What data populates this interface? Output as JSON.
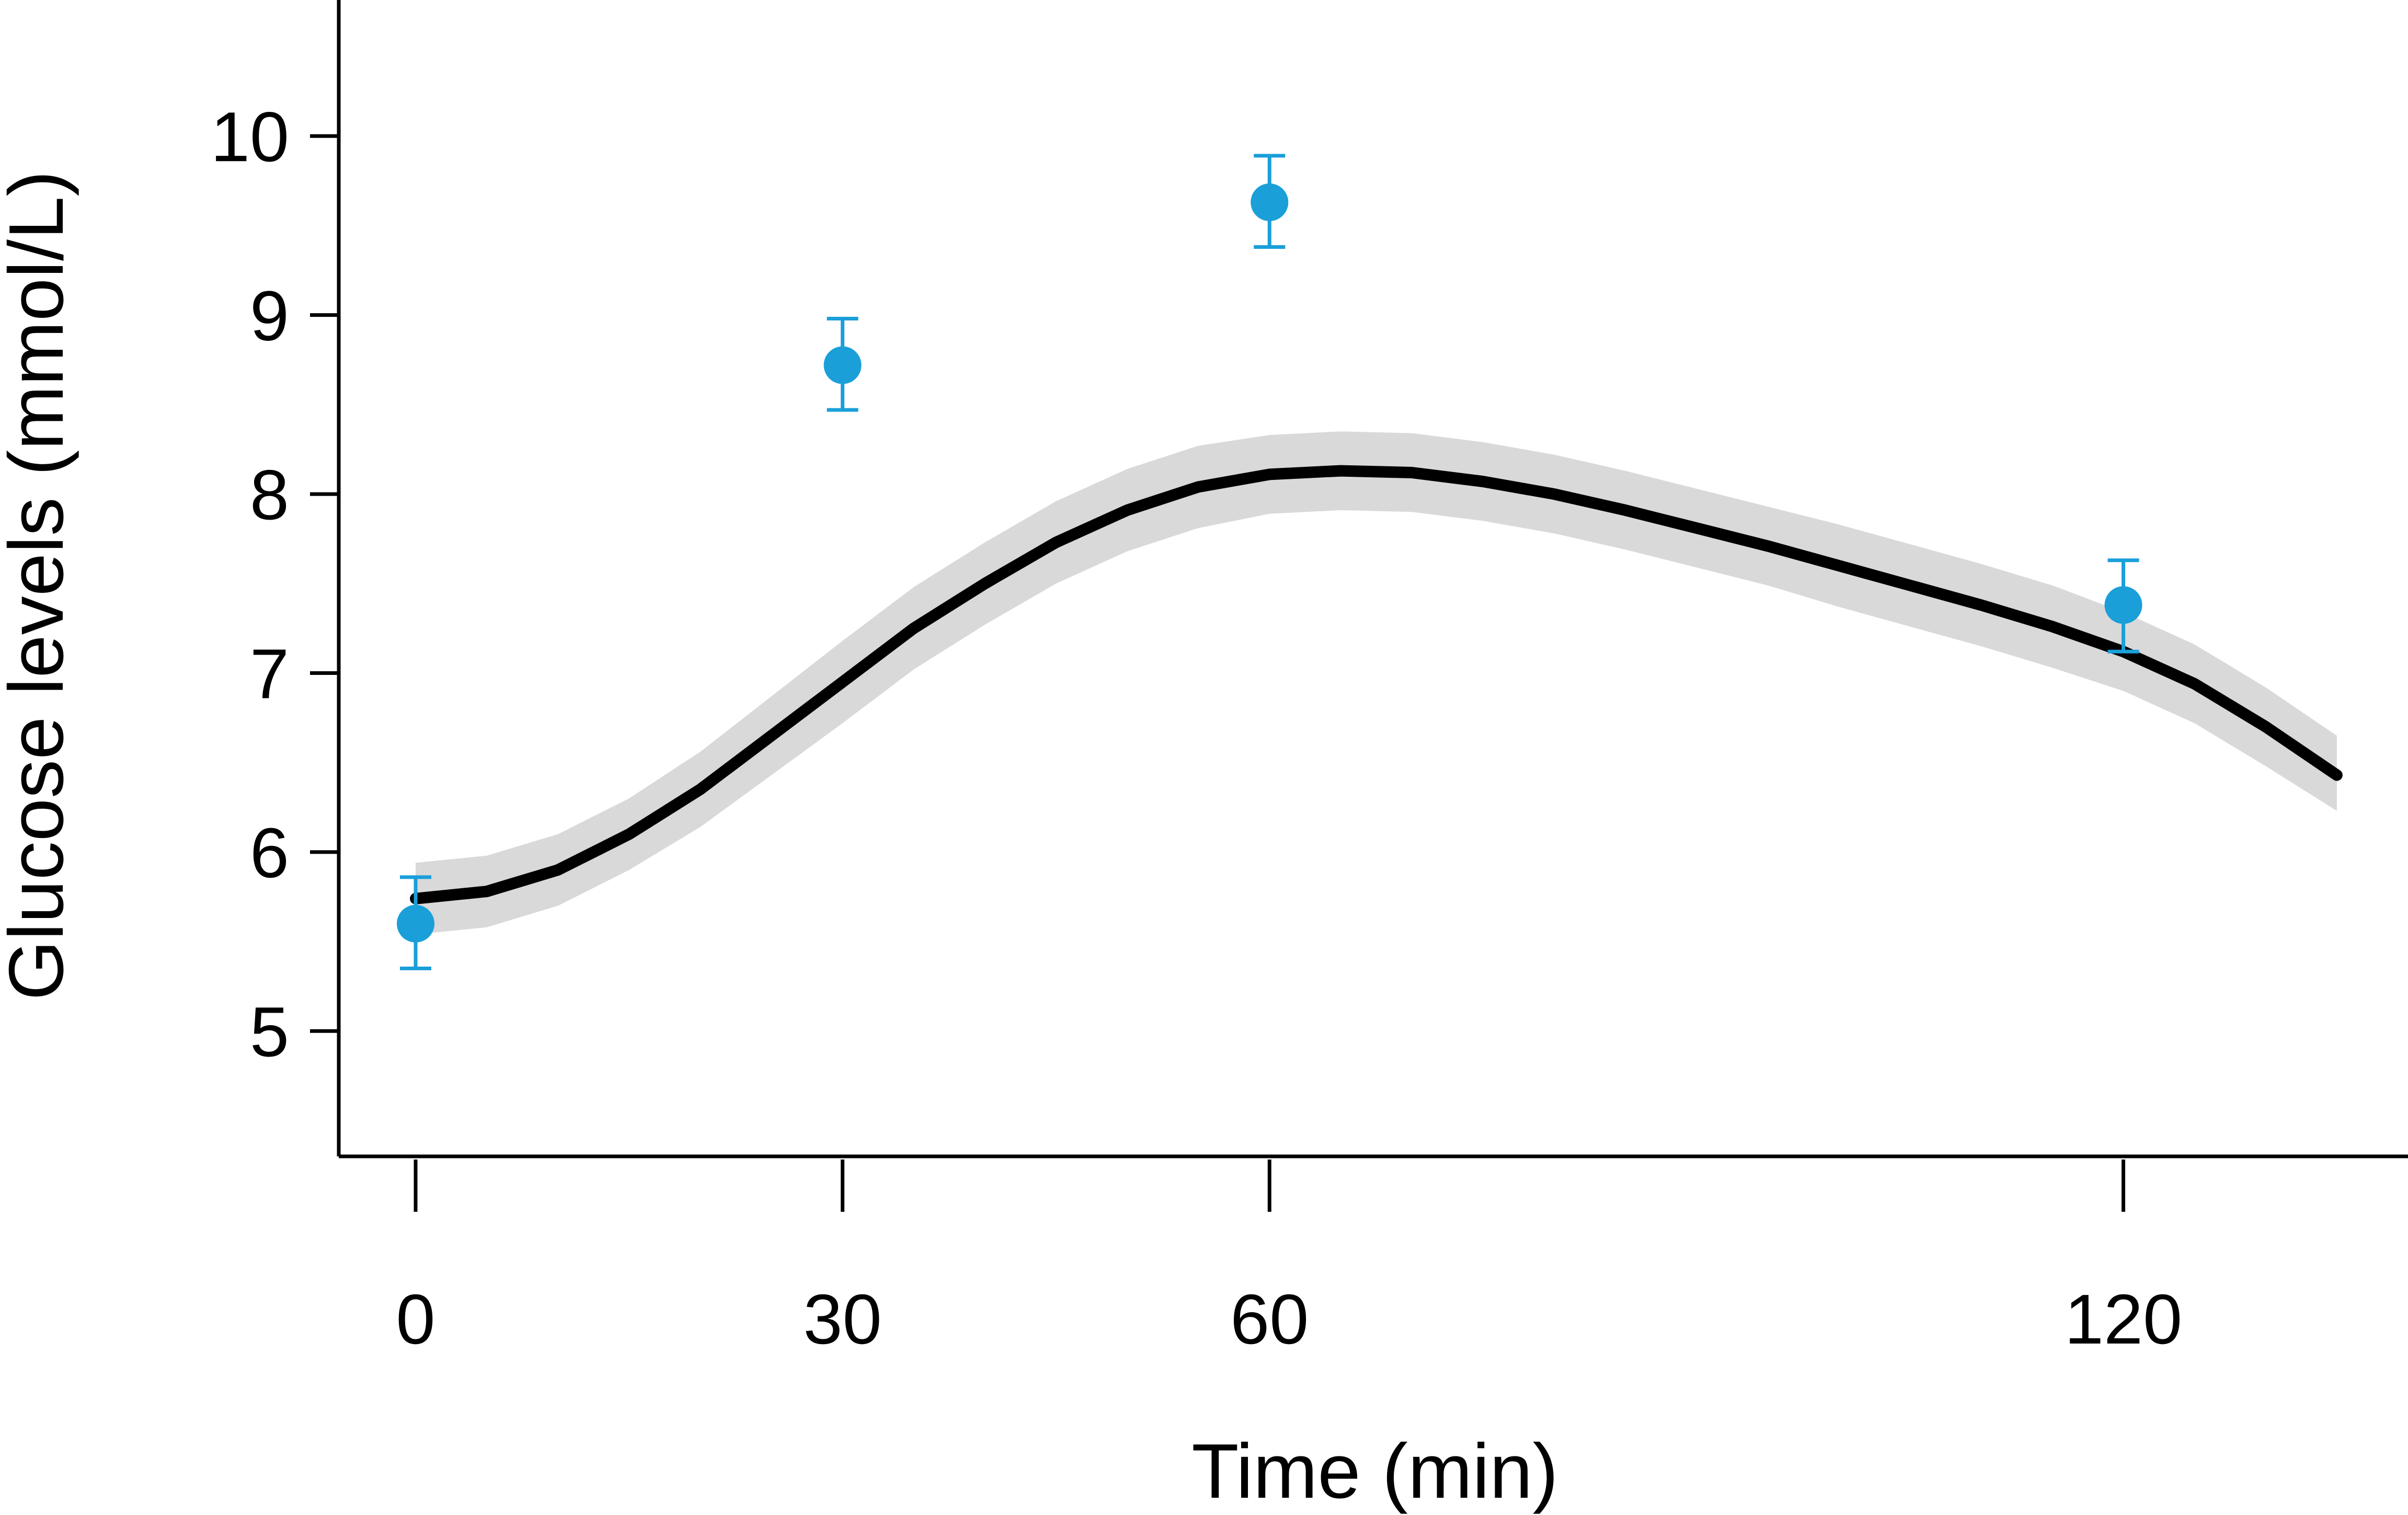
{
  "chart_data": {
    "type": "line",
    "xlabel": "Time (min)",
    "ylabel": "Glucose levels (mmol/L)",
    "x_ticks": [
      0,
      30,
      60,
      120
    ],
    "x_tick_labels": [
      "0",
      "30",
      "60",
      "120"
    ],
    "y_ticks": [
      5,
      6,
      7,
      8,
      9,
      10
    ],
    "y_tick_labels": [
      "5",
      "6",
      "7",
      "8",
      "9",
      "10"
    ],
    "xlim": [
      -5.4,
      140
    ],
    "ylim": [
      4.3,
      10.76
    ],
    "grid": false,
    "legend": "none",
    "colors": {
      "curve": "#000000",
      "band": "#d9d9d9",
      "points": "#1a9fd9"
    },
    "series": [
      {
        "type": "line",
        "x": [
          0,
          5,
          10,
          15,
          20,
          25,
          30,
          35,
          40,
          45,
          50,
          55,
          60,
          65,
          70,
          75,
          80,
          85,
          90,
          95,
          100,
          105,
          110,
          115,
          120,
          125,
          130,
          135
        ],
        "values": [
          5.74,
          5.78,
          5.9,
          6.1,
          6.35,
          6.65,
          6.95,
          7.25,
          7.5,
          7.73,
          7.91,
          8.04,
          8.11,
          8.13,
          8.12,
          8.07,
          8.0,
          7.91,
          7.81,
          7.71,
          7.6,
          7.49,
          7.38,
          7.26,
          7.12,
          6.94,
          6.7,
          6.43
        ],
        "lower": [
          5.54,
          5.58,
          5.7,
          5.9,
          6.14,
          6.43,
          6.72,
          7.02,
          7.27,
          7.5,
          7.68,
          7.81,
          7.89,
          7.91,
          7.9,
          7.85,
          7.78,
          7.69,
          7.59,
          7.49,
          7.37,
          7.26,
          7.15,
          7.03,
          6.9,
          6.72,
          6.48,
          6.23
        ],
        "upper": [
          5.94,
          5.98,
          6.1,
          6.3,
          6.56,
          6.87,
          7.18,
          7.48,
          7.73,
          7.96,
          8.14,
          8.27,
          8.33,
          8.35,
          8.34,
          8.29,
          8.22,
          8.13,
          8.03,
          7.93,
          7.83,
          7.72,
          7.61,
          7.49,
          7.34,
          7.16,
          6.92,
          6.65
        ]
      },
      {
        "type": "scatter",
        "x": [
          0,
          30,
          60,
          120
        ],
        "values": [
          5.6,
          8.72,
          9.63,
          7.38
        ],
        "error_low": [
          5.35,
          8.47,
          9.38,
          7.12
        ],
        "error_high": [
          5.86,
          8.98,
          9.89,
          7.63
        ]
      }
    ]
  }
}
